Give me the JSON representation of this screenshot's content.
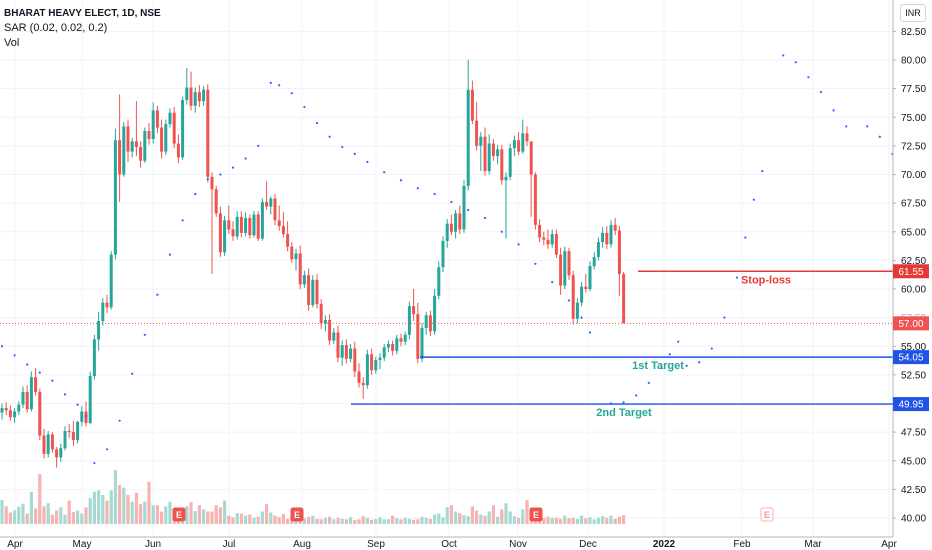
{
  "legend": {
    "title": "BHARAT HEAVY ELECT, 1D, NSE",
    "sar": "SAR (0.02, 0.02, 0.2)",
    "vol": "Vol"
  },
  "currency": "INR",
  "colors": {
    "up": "#26a69a",
    "down": "#ef5350",
    "sar": "#2962ff",
    "stop": "#e53935",
    "target": "#1e53e5",
    "target_label": "#26a69a",
    "last_price": "#ef5350",
    "grid": "#f0f3fa",
    "axis_text": "#131722"
  },
  "chart_data": {
    "type": "candlestick",
    "y_ticks": [
      "40.00",
      "42.50",
      "45.00",
      "47.50",
      "50.00",
      "52.50",
      "55.00",
      "57.50",
      "60.00",
      "62.50",
      "65.00",
      "67.50",
      "70.00",
      "72.50",
      "75.00",
      "77.50",
      "80.00",
      "82.50"
    ],
    "ylim": [
      40,
      83.5
    ],
    "x_ticks": [
      "Apr",
      "May",
      "Jun",
      "Jul",
      "Aug",
      "Sep",
      "Oct",
      "Nov",
      "Dec",
      "2022",
      "Feb",
      "Mar",
      "Apr"
    ],
    "grid": true,
    "candles_ohlc": [
      [
        49.2,
        50.0,
        48.6,
        49.6
      ],
      [
        49.6,
        50.1,
        49.0,
        49.4
      ],
      [
        49.4,
        49.8,
        48.5,
        48.8
      ],
      [
        48.8,
        49.6,
        48.3,
        49.3
      ],
      [
        49.3,
        50.2,
        49.0,
        49.9
      ],
      [
        49.9,
        51.5,
        49.6,
        51.0
      ],
      [
        51.0,
        51.6,
        49.2,
        49.5
      ],
      [
        49.5,
        52.8,
        49.3,
        52.3
      ],
      [
        52.3,
        53.1,
        50.7,
        51.0
      ],
      [
        51.0,
        51.3,
        46.8,
        47.2
      ],
      [
        47.2,
        47.8,
        45.2,
        45.6
      ],
      [
        45.6,
        47.6,
        45.3,
        47.3
      ],
      [
        47.3,
        47.5,
        45.7,
        46.0
      ],
      [
        46.0,
        46.2,
        44.4,
        45.3
      ],
      [
        45.3,
        46.5,
        44.9,
        46.1
      ],
      [
        46.1,
        48.0,
        45.9,
        47.6
      ],
      [
        47.6,
        48.2,
        47.0,
        47.5
      ],
      [
        47.5,
        48.5,
        46.3,
        46.8
      ],
      [
        46.8,
        48.5,
        46.5,
        48.4
      ],
      [
        48.4,
        49.8,
        48.0,
        49.3
      ],
      [
        49.3,
        50.2,
        48.0,
        48.3
      ],
      [
        48.3,
        52.8,
        48.2,
        52.4
      ],
      [
        52.4,
        56.0,
        52.1,
        55.6
      ],
      [
        55.6,
        58.0,
        54.6,
        57.2
      ],
      [
        57.2,
        59.2,
        56.8,
        58.8
      ],
      [
        58.8,
        59.5,
        57.9,
        58.4
      ],
      [
        58.4,
        63.3,
        58.2,
        63.0
      ],
      [
        63.0,
        74.0,
        62.6,
        73.0
      ],
      [
        73.0,
        77.0,
        67.6,
        70.0
      ],
      [
        70.0,
        74.6,
        69.8,
        74.2
      ],
      [
        74.2,
        74.8,
        71.1,
        72.0
      ],
      [
        72.0,
        73.2,
        71.5,
        72.9
      ],
      [
        72.9,
        76.4,
        71.6,
        72.4
      ],
      [
        72.4,
        72.9,
        70.6,
        71.2
      ],
      [
        71.2,
        74.1,
        71.0,
        73.8
      ],
      [
        73.8,
        74.5,
        72.6,
        73.1
      ],
      [
        73.1,
        76.3,
        72.7,
        75.6
      ],
      [
        75.6,
        76.0,
        73.6,
        74.1
      ],
      [
        74.1,
        74.8,
        71.4,
        72.0
      ],
      [
        72.0,
        74.8,
        71.7,
        74.4
      ],
      [
        74.4,
        75.8,
        74.1,
        75.4
      ],
      [
        75.4,
        75.9,
        72.3,
        72.7
      ],
      [
        72.7,
        73.5,
        71.0,
        71.5
      ],
      [
        71.5,
        76.8,
        71.3,
        76.5
      ],
      [
        76.5,
        79.3,
        76.1,
        77.6
      ],
      [
        77.6,
        79.0,
        75.6,
        76.0
      ],
      [
        76.0,
        77.6,
        75.4,
        77.2
      ],
      [
        77.2,
        77.8,
        75.9,
        76.4
      ],
      [
        76.4,
        77.7,
        76.0,
        77.4
      ],
      [
        77.4,
        77.9,
        69.3,
        69.8
      ],
      [
        69.8,
        70.2,
        61.3,
        68.7
      ],
      [
        68.7,
        69.0,
        66.3,
        66.6
      ],
      [
        66.6,
        67.2,
        62.8,
        63.2
      ],
      [
        63.2,
        66.4,
        62.9,
        66.0
      ],
      [
        66.0,
        67.3,
        64.8,
        65.2
      ],
      [
        65.2,
        65.9,
        64.2,
        64.6
      ],
      [
        64.6,
        66.8,
        64.3,
        66.3
      ],
      [
        66.3,
        66.8,
        64.5,
        64.9
      ],
      [
        64.9,
        66.7,
        64.6,
        66.2
      ],
      [
        66.2,
        66.5,
        64.4,
        64.7
      ],
      [
        64.7,
        66.8,
        64.5,
        66.5
      ],
      [
        66.5,
        66.8,
        64.2,
        64.4
      ],
      [
        64.4,
        67.9,
        64.2,
        67.6
      ],
      [
        67.6,
        69.4,
        66.9,
        67.2
      ],
      [
        67.2,
        68.1,
        66.5,
        67.9
      ],
      [
        67.9,
        68.3,
        65.6,
        66.0
      ],
      [
        66.0,
        67.3,
        65.1,
        65.5
      ],
      [
        65.5,
        66.7,
        64.5,
        64.8
      ],
      [
        64.8,
        65.9,
        63.3,
        63.7
      ],
      [
        63.7,
        64.1,
        62.3,
        62.6
      ],
      [
        62.6,
        63.5,
        61.6,
        63.1
      ],
      [
        63.1,
        63.8,
        60.0,
        60.4
      ],
      [
        60.4,
        61.6,
        60.1,
        61.2
      ],
      [
        61.2,
        61.8,
        58.1,
        58.6
      ],
      [
        58.6,
        61.2,
        58.4,
        60.8
      ],
      [
        60.8,
        61.3,
        58.3,
        58.7
      ],
      [
        58.7,
        59.1,
        56.5,
        57.0
      ],
      [
        57.0,
        57.7,
        56.3,
        57.3
      ],
      [
        57.3,
        57.8,
        55.1,
        55.5
      ],
      [
        55.5,
        56.6,
        55.2,
        56.2
      ],
      [
        56.2,
        56.8,
        53.6,
        54.0
      ],
      [
        54.0,
        55.5,
        53.3,
        55.1
      ],
      [
        55.1,
        55.6,
        53.5,
        53.9
      ],
      [
        53.9,
        55.2,
        53.6,
        54.8
      ],
      [
        54.8,
        55.4,
        52.3,
        52.8
      ],
      [
        52.8,
        53.5,
        51.4,
        51.8
      ],
      [
        51.8,
        52.3,
        50.4,
        51.6
      ],
      [
        51.6,
        54.7,
        51.3,
        54.3
      ],
      [
        54.3,
        54.8,
        52.5,
        52.9
      ],
      [
        52.9,
        54.1,
        52.6,
        53.8
      ],
      [
        53.8,
        54.4,
        53.0,
        54.0
      ],
      [
        54.0,
        55.2,
        53.7,
        54.9
      ],
      [
        54.9,
        55.5,
        54.5,
        55.2
      ],
      [
        55.2,
        55.5,
        54.2,
        54.6
      ],
      [
        54.6,
        56.0,
        54.3,
        55.7
      ],
      [
        55.7,
        56.1,
        55.0,
        55.4
      ],
      [
        55.4,
        56.3,
        55.1,
        56.0
      ],
      [
        56.0,
        58.9,
        55.6,
        58.5
      ],
      [
        58.5,
        60.0,
        57.2,
        57.8
      ],
      [
        57.8,
        58.8,
        53.5,
        53.9
      ],
      [
        53.9,
        57.0,
        53.6,
        56.6
      ],
      [
        56.6,
        58.0,
        56.0,
        57.7
      ],
      [
        57.7,
        58.1,
        55.9,
        56.3
      ],
      [
        56.3,
        60.0,
        56.0,
        59.4
      ],
      [
        59.4,
        62.4,
        59.1,
        61.9
      ],
      [
        61.9,
        64.6,
        61.5,
        64.2
      ],
      [
        64.2,
        66.1,
        63.6,
        65.7
      ],
      [
        65.7,
        66.5,
        64.7,
        65.0
      ],
      [
        65.0,
        66.9,
        64.4,
        66.6
      ],
      [
        66.6,
        67.3,
        64.8,
        65.2
      ],
      [
        65.2,
        69.5,
        64.9,
        69.0
      ],
      [
        69.0,
        80.0,
        68.6,
        77.4
      ],
      [
        77.4,
        78.2,
        74.4,
        74.7
      ],
      [
        74.7,
        76.3,
        72.1,
        72.5
      ],
      [
        72.5,
        73.7,
        70.3,
        73.3
      ],
      [
        73.3,
        74.1,
        69.9,
        70.3
      ],
      [
        70.3,
        73.5,
        70.0,
        72.7
      ],
      [
        72.7,
        73.1,
        71.2,
        71.6
      ],
      [
        71.6,
        72.6,
        70.9,
        72.2
      ],
      [
        72.2,
        72.6,
        69.1,
        69.5
      ],
      [
        69.5,
        70.2,
        64.4,
        69.8
      ],
      [
        69.8,
        72.7,
        69.5,
        72.3
      ],
      [
        72.3,
        73.4,
        71.6,
        73.0
      ],
      [
        73.0,
        73.7,
        71.7,
        72.0
      ],
      [
        72.0,
        74.8,
        71.8,
        73.6
      ],
      [
        73.6,
        74.2,
        72.5,
        72.9
      ],
      [
        72.9,
        70.4,
        66.3,
        70.0
      ],
      [
        70.0,
        70.2,
        65.2,
        65.6
      ],
      [
        65.6,
        66.1,
        64.1,
        64.5
      ],
      [
        64.5,
        65.0,
        63.8,
        64.3
      ],
      [
        64.3,
        65.2,
        63.5,
        63.9
      ],
      [
        63.9,
        65.2,
        63.6,
        64.8
      ],
      [
        64.8,
        65.2,
        62.7,
        63.0
      ],
      [
        63.0,
        63.6,
        59.5,
        60.3
      ],
      [
        60.3,
        63.7,
        60.0,
        63.3
      ],
      [
        63.3,
        63.6,
        60.8,
        61.2
      ],
      [
        61.2,
        61.6,
        56.9,
        57.4
      ],
      [
        57.4,
        59.2,
        57.0,
        58.8
      ],
      [
        58.8,
        60.6,
        58.5,
        60.2
      ],
      [
        60.2,
        61.3,
        59.7,
        60.0
      ],
      [
        60.0,
        62.4,
        59.8,
        62.0
      ],
      [
        62.0,
        63.2,
        61.7,
        62.8
      ],
      [
        62.8,
        64.5,
        62.5,
        64.1
      ],
      [
        64.1,
        65.4,
        63.6,
        64.9
      ],
      [
        64.9,
        65.5,
        63.5,
        63.9
      ],
      [
        63.9,
        66.0,
        63.6,
        65.6
      ],
      [
        65.6,
        66.2,
        64.7,
        65.1
      ],
      [
        65.1,
        65.5,
        59.4,
        61.3
      ],
      [
        61.3,
        61.5,
        57.0,
        57.0
      ]
    ],
    "volumes": [
      4.6,
      3.4,
      2.2,
      2.6,
      3.3,
      3.9,
      2.0,
      6.2,
      3.0,
      9.6,
      3.4,
      4.0,
      1.8,
      2.6,
      3.2,
      1.8,
      4.5,
      2.3,
      2.6,
      2.0,
      3.2,
      5.0,
      6.2,
      6.5,
      5.6,
      4.5,
      6.5,
      10.4,
      7.5,
      7.0,
      5.6,
      4.3,
      6.0,
      3.8,
      4.3,
      8.1,
      3.6,
      3.6,
      2.4,
      3.4,
      4.3,
      3.0,
      2.8,
      3.1,
      3.4,
      4.2,
      2.5,
      3.6,
      2.8,
      2.4,
      2.4,
      3.6,
      3.2,
      4.5,
      1.6,
      1.3,
      2.1,
      2.0,
      1.6,
      1.8,
      1.2,
      1.4,
      2.4,
      3.8,
      2.2,
      1.6,
      1.3,
      1.9,
      1.0,
      1.5,
      1.2,
      1.9,
      1.1,
      1.4,
      1.6,
      1.0,
      0.9,
      1.2,
      1.4,
      0.9,
      1.2,
      1.0,
      0.9,
      1.3,
      0.8,
      0.9,
      1.5,
      1.2,
      0.8,
      1.0,
      1.3,
      0.9,
      0.9,
      1.6,
      1.1,
      0.9,
      1.2,
      1.0,
      0.8,
      0.9,
      1.4,
      1.2,
      1.0,
      1.8,
      2.0,
      1.3,
      3.2,
      3.6,
      2.4,
      2.1,
      1.7,
      1.5,
      3.4,
      2.6,
      1.8,
      1.6,
      2.4,
      3.6,
      1.4,
      2.8,
      4.0,
      2.4,
      1.5,
      1.2,
      2.8,
      4.6,
      1.8,
      1.9,
      1.3,
      1.1,
      1.4,
      1.2,
      1.2,
      1.0,
      1.6,
      1.1,
      1.2,
      1.0,
      1.6,
      1.1,
      1.3,
      0.9,
      1.2,
      1.5,
      1.2,
      1.6,
      1.0,
      1.4,
      1.7
    ],
    "sar_points": [
      [
        0,
        55.0
      ],
      [
        3,
        54.2
      ],
      [
        6,
        53.4
      ],
      [
        9,
        52.7
      ],
      [
        12,
        52.0
      ],
      [
        15,
        50.8
      ],
      [
        18,
        49.9
      ],
      [
        20,
        48.9
      ],
      [
        22,
        44.8
      ],
      [
        25,
        46.0
      ],
      [
        28,
        48.5
      ],
      [
        31,
        52.6
      ],
      [
        34,
        56.0
      ],
      [
        37,
        59.5
      ],
      [
        40,
        63.0
      ],
      [
        43,
        66.0
      ],
      [
        46,
        68.3
      ],
      [
        49,
        69.6
      ],
      [
        52,
        70.0
      ],
      [
        55,
        70.6
      ],
      [
        58,
        71.4
      ],
      [
        61,
        72.5
      ],
      [
        64,
        78.0
      ],
      [
        66,
        77.8
      ],
      [
        69,
        77.1
      ],
      [
        72,
        75.9
      ],
      [
        75,
        74.5
      ],
      [
        78,
        73.3
      ],
      [
        81,
        72.4
      ],
      [
        84,
        71.8
      ],
      [
        87,
        71.1
      ],
      [
        91,
        70.2
      ],
      [
        95,
        69.5
      ],
      [
        99,
        68.8
      ],
      [
        103,
        68.3
      ],
      [
        107,
        67.6
      ],
      [
        111,
        66.9
      ],
      [
        115,
        66.2
      ],
      [
        119,
        65.0
      ],
      [
        123,
        63.9
      ],
      [
        127,
        62.2
      ],
      [
        131,
        60.6
      ],
      [
        135,
        59.0
      ],
      [
        138,
        57.5
      ],
      [
        140,
        56.2
      ],
      [
        145,
        50.0
      ],
      [
        148,
        50.1
      ],
      [
        151,
        50.7
      ],
      [
        154,
        51.8
      ],
      [
        157,
        53.1
      ],
      [
        159,
        54.3
      ],
      [
        161,
        55.4
      ],
      [
        163,
        53.3
      ],
      [
        166,
        53.6
      ],
      [
        169,
        54.8
      ],
      [
        172,
        57.5
      ],
      [
        175,
        61.0
      ],
      [
        177,
        64.5
      ],
      [
        179,
        67.8
      ],
      [
        181,
        70.3
      ],
      [
        186,
        80.4
      ],
      [
        189,
        79.8
      ],
      [
        192,
        78.5
      ],
      [
        195,
        77.2
      ],
      [
        198,
        75.6
      ],
      [
        201,
        74.2
      ],
      [
        206,
        74.2
      ],
      [
        209,
        73.3
      ],
      [
        212,
        71.8
      ],
      [
        215,
        69.8
      ],
      [
        218,
        67.8
      ],
      [
        221,
        65.8
      ],
      [
        224,
        63.5
      ],
      [
        226,
        61.5
      ],
      [
        229,
        56.9
      ],
      [
        232,
        57.1
      ],
      [
        235,
        57.5
      ],
      [
        238,
        58.2
      ],
      [
        241,
        59.2
      ],
      [
        244,
        60.4
      ],
      [
        248,
        66.0
      ],
      [
        251,
        65.8
      ]
    ],
    "annotations": {
      "stop_loss": {
        "value": 61.55,
        "label": "Stop-loss"
      },
      "target_1": {
        "value": 54.05,
        "label": "1st Target"
      },
      "target_2": {
        "value": 49.95,
        "label": "2nd Target"
      },
      "last_price": {
        "value": 57.0,
        "label": "57.00"
      },
      "price_tags": [
        "61.55",
        "54.05",
        "49.95"
      ],
      "ghost_tag": "57.50"
    },
    "earnings_markers": [
      "E",
      "E",
      "E",
      "E"
    ]
  }
}
